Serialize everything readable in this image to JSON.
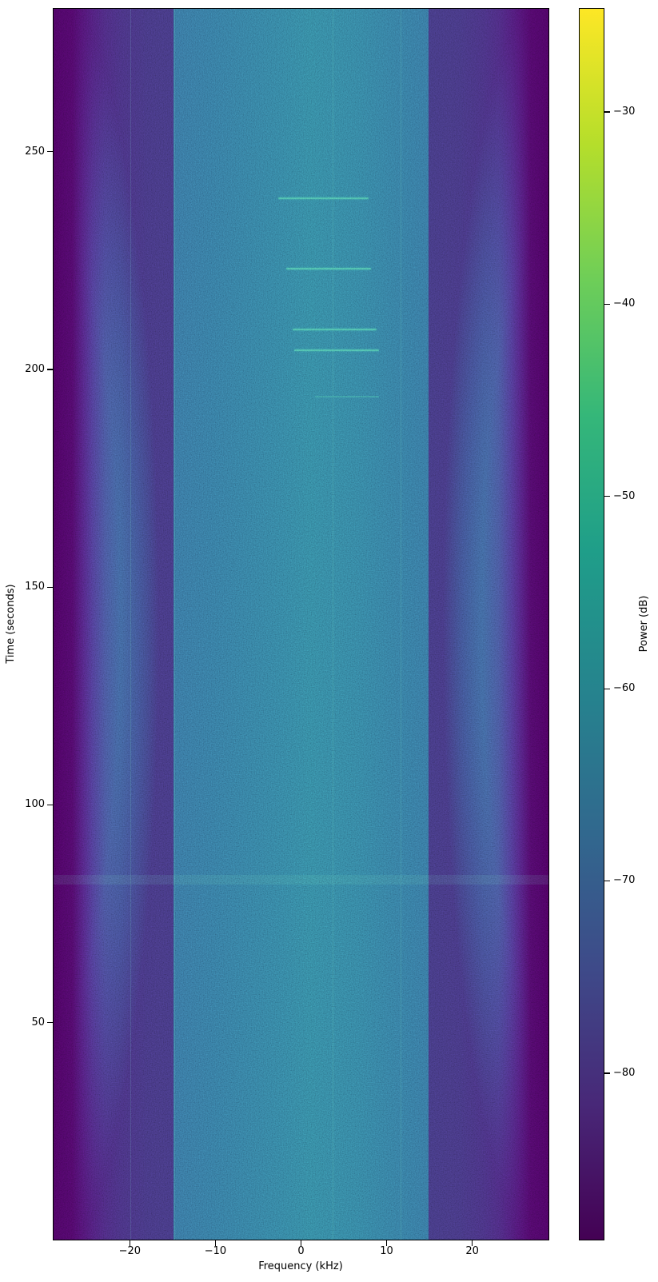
{
  "figure": {
    "background": "#ffffff",
    "kind": "matplotlib-spectrogram"
  },
  "chart_data": {
    "type": "heatmap",
    "subtype": "spectrogram-waterfall",
    "title": "",
    "xlabel": "Frequency (kHz)",
    "ylabel": "Time (seconds)",
    "xlim": [
      -29,
      29
    ],
    "ylim": [
      0,
      283
    ],
    "grid": false,
    "colormap": "viridis",
    "xticks": [
      {
        "v": -20,
        "label": "−20"
      },
      {
        "v": -10,
        "label": "−10"
      },
      {
        "v": 0,
        "label": "0"
      },
      {
        "v": 10,
        "label": "10"
      },
      {
        "v": 20,
        "label": "20"
      }
    ],
    "yticks": [
      {
        "v": 50,
        "label": "50"
      },
      {
        "v": 100,
        "label": "100"
      },
      {
        "v": 150,
        "label": "150"
      },
      {
        "v": 200,
        "label": "200"
      },
      {
        "v": 250,
        "label": "250"
      }
    ],
    "colorbar": {
      "label": "Power (dB)",
      "vmax": -24.6,
      "vmin": -88.7,
      "ticks": [
        {
          "v": -30,
          "label": "−30"
        },
        {
          "v": -40,
          "label": "−40"
        },
        {
          "v": -50,
          "label": "−50"
        },
        {
          "v": -60,
          "label": "−60"
        },
        {
          "v": -70,
          "label": "−70"
        },
        {
          "v": -80,
          "label": "−80"
        }
      ]
    },
    "noise_floor_db": -67,
    "occupied_bandwidth_khz": [
      -25,
      25
    ],
    "band_edge_level_db": -88,
    "events": [
      {
        "type": "burst",
        "time_s": 239.5,
        "f_start_khz": -2.8,
        "f_end_khz": 7.8,
        "intensity": "bright",
        "level_db": -55
      },
      {
        "type": "burst",
        "time_s": 223.4,
        "f_start_khz": -1.8,
        "f_end_khz": 8.1,
        "intensity": "bright",
        "level_db": -55
      },
      {
        "type": "burst",
        "time_s": 209.4,
        "f_start_khz": -1.1,
        "f_end_khz": 8.7,
        "intensity": "bright",
        "level_db": -53
      },
      {
        "type": "burst",
        "time_s": 204.6,
        "f_start_khz": -0.9,
        "f_end_khz": 9.0,
        "intensity": "bright",
        "level_db": -54
      },
      {
        "type": "burst",
        "time_s": 193.9,
        "f_start_khz": 1.5,
        "f_end_khz": 9.0,
        "intensity": "faint",
        "level_db": -62
      },
      {
        "type": "band",
        "time_s": 83.0,
        "f_start_khz": -29,
        "f_end_khz": 29,
        "intensity": "faint",
        "level_db": -64
      }
    ],
    "vertical_artifacts_khz": [
      -20.0,
      -14.9,
      3.6,
      11.5
    ]
  }
}
